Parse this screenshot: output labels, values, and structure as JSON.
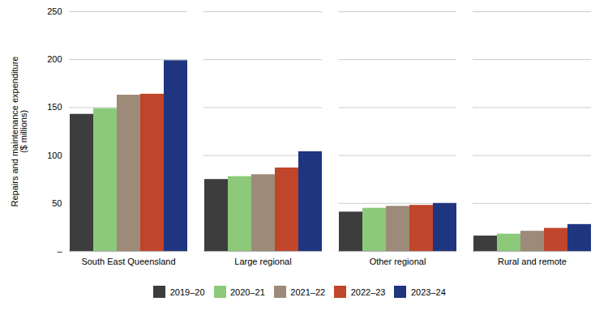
{
  "chart_data": {
    "type": "bar",
    "categories": [
      "South East Queensland",
      "Large regional",
      "Other regional",
      "Rural and remote"
    ],
    "series": [
      {
        "name": "2019–20",
        "color": "#3d3d3d",
        "values": [
          143,
          75,
          41,
          16
        ]
      },
      {
        "name": "2020–21",
        "color": "#8dc97a",
        "values": [
          149,
          78,
          45,
          18
        ]
      },
      {
        "name": "2021–22",
        "color": "#9e8a78",
        "values": [
          163,
          80,
          47,
          21
        ]
      },
      {
        "name": "2022–23",
        "color": "#c0462b",
        "values": [
          164,
          87,
          48,
          24
        ]
      },
      {
        "name": "2023–24",
        "color": "#1f3580",
        "values": [
          199,
          104,
          50,
          28
        ]
      }
    ],
    "ylabel": "Repairs and maintenance expenditure\n($ millions)",
    "ylim": [
      0,
      250
    ],
    "yticks": [
      {
        "value": 0,
        "label": "–"
      },
      50,
      100,
      150,
      200,
      250
    ],
    "grid": true,
    "legend": "bottom"
  }
}
